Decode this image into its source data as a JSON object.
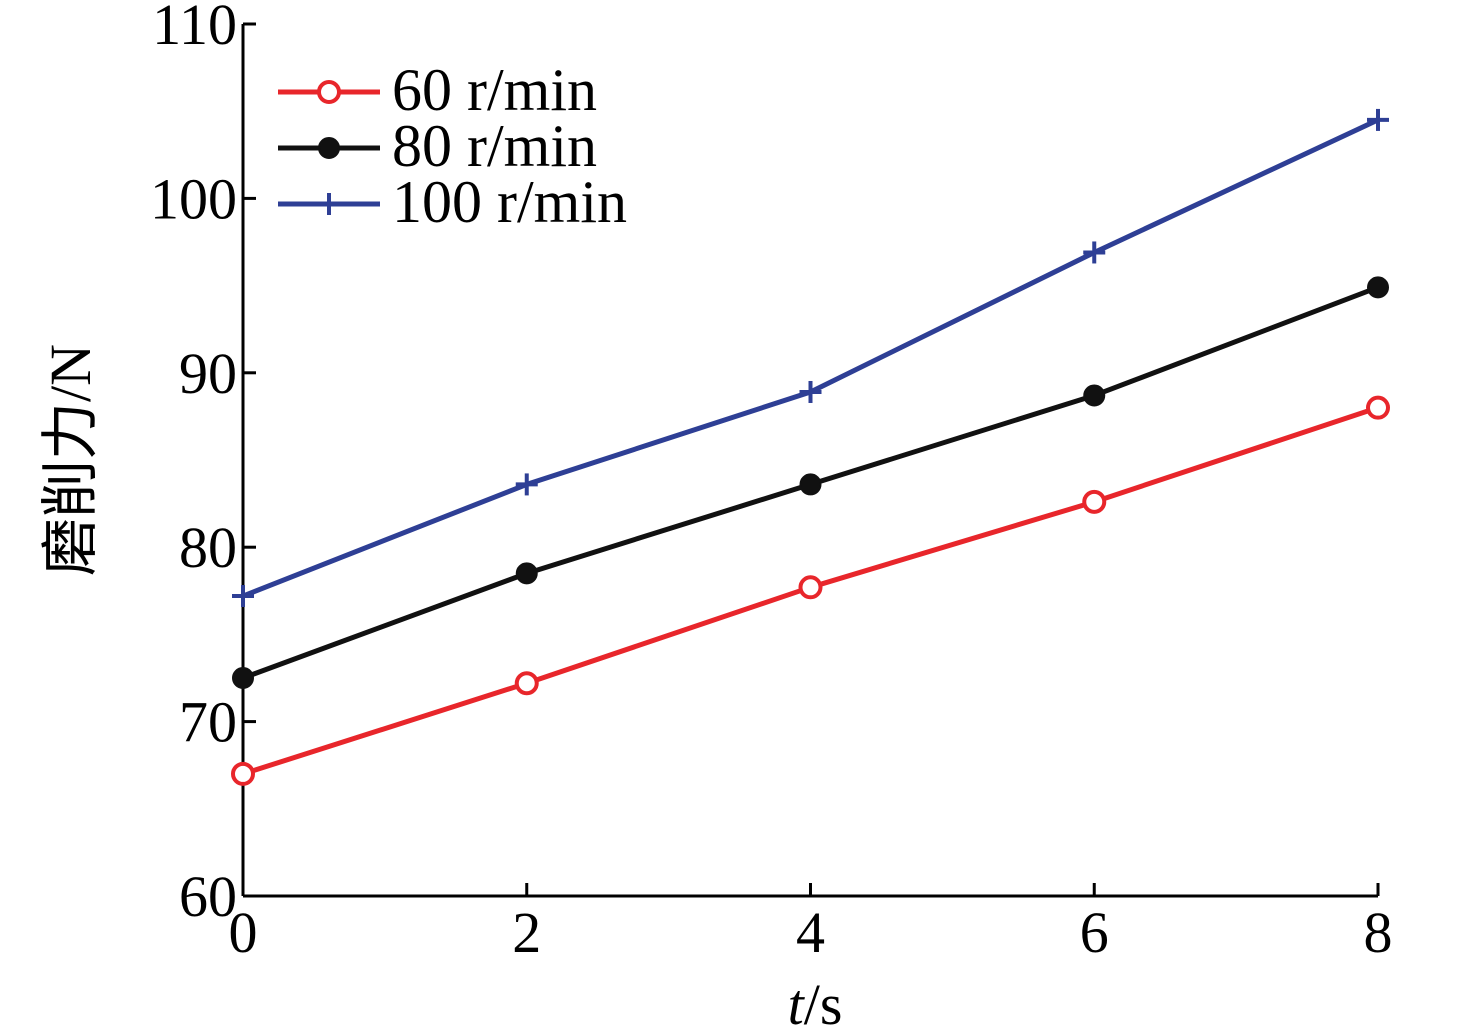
{
  "chart_data": {
    "type": "line",
    "title": "",
    "xlabel_var": "t",
    "xlabel_unit": "/s",
    "ylabel": "磨削力/N",
    "x": [
      0,
      2,
      4,
      6,
      8
    ],
    "xlim": [
      0,
      8
    ],
    "ylim": [
      60,
      110
    ],
    "xticks": [
      "0",
      "2",
      "4",
      "6",
      "8"
    ],
    "yticks": [
      "60",
      "70",
      "80",
      "90",
      "100",
      "110"
    ],
    "grid": false,
    "legend_position": "top-left",
    "series": [
      {
        "name": "60 r/min",
        "color": "#e8262b",
        "marker": "open-circle",
        "values": [
          67.0,
          72.2,
          77.7,
          82.6,
          88.0
        ]
      },
      {
        "name": "80 r/min",
        "color": "#111111",
        "marker": "filled-circle",
        "values": [
          72.5,
          78.5,
          83.6,
          88.7,
          94.9
        ]
      },
      {
        "name": "100 r/min",
        "color": "#2e3f95",
        "marker": "plus",
        "values": [
          77.2,
          83.6,
          88.9,
          96.9,
          104.5
        ]
      }
    ]
  }
}
